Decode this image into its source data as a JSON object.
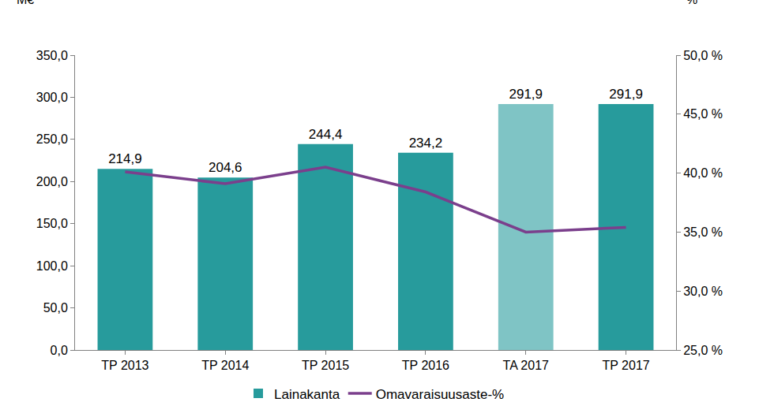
{
  "chart_data": {
    "type": "bar",
    "categories": [
      "TP 2013",
      "TP 2014",
      "TP 2015",
      "TP 2016",
      "TA 2017",
      "TP 2017"
    ],
    "series": [
      {
        "name": "Lainakanta",
        "type": "bar",
        "colors": [
          "#279b9c",
          "#279b9c",
          "#279b9c",
          "#279b9c",
          "#7fc4c5",
          "#279b9c"
        ],
        "values": [
          214.9,
          204.6,
          244.4,
          234.2,
          291.9,
          291.9
        ],
        "value_labels": [
          "214,9",
          "204,6",
          "244,4",
          "234,2",
          "291,9",
          "291,9"
        ]
      },
      {
        "name": "Omavaraisuusaste-%",
        "type": "line",
        "color": "#7b3f8c",
        "axis": "y2",
        "values": [
          40.1,
          39.1,
          40.5,
          38.4,
          35.0,
          35.4
        ]
      }
    ],
    "y_label": "M€",
    "y2_label": "%",
    "ylim": [
      0,
      350
    ],
    "yticks": [
      {
        "value": 0,
        "label": "0,0"
      },
      {
        "value": 50,
        "label": "50,0"
      },
      {
        "value": 100,
        "label": "100,0"
      },
      {
        "value": 150,
        "label": "150,0"
      },
      {
        "value": 200,
        "label": "200,0"
      },
      {
        "value": 250,
        "label": "250,0"
      },
      {
        "value": 300,
        "label": "300,0"
      },
      {
        "value": 350,
        "label": "350,0"
      }
    ],
    "y2lim": [
      25,
      50
    ],
    "y2ticks": [
      {
        "value": 25,
        "label": "25,0 %"
      },
      {
        "value": 30,
        "label": "30,0 %"
      },
      {
        "value": 35,
        "label": "35,0 %"
      },
      {
        "value": 40,
        "label": "40,0 %"
      },
      {
        "value": 45,
        "label": "45,0 %"
      },
      {
        "value": 50,
        "label": "50,0 %"
      }
    ],
    "grid": false,
    "legend": "bottom",
    "data_labels": true
  }
}
